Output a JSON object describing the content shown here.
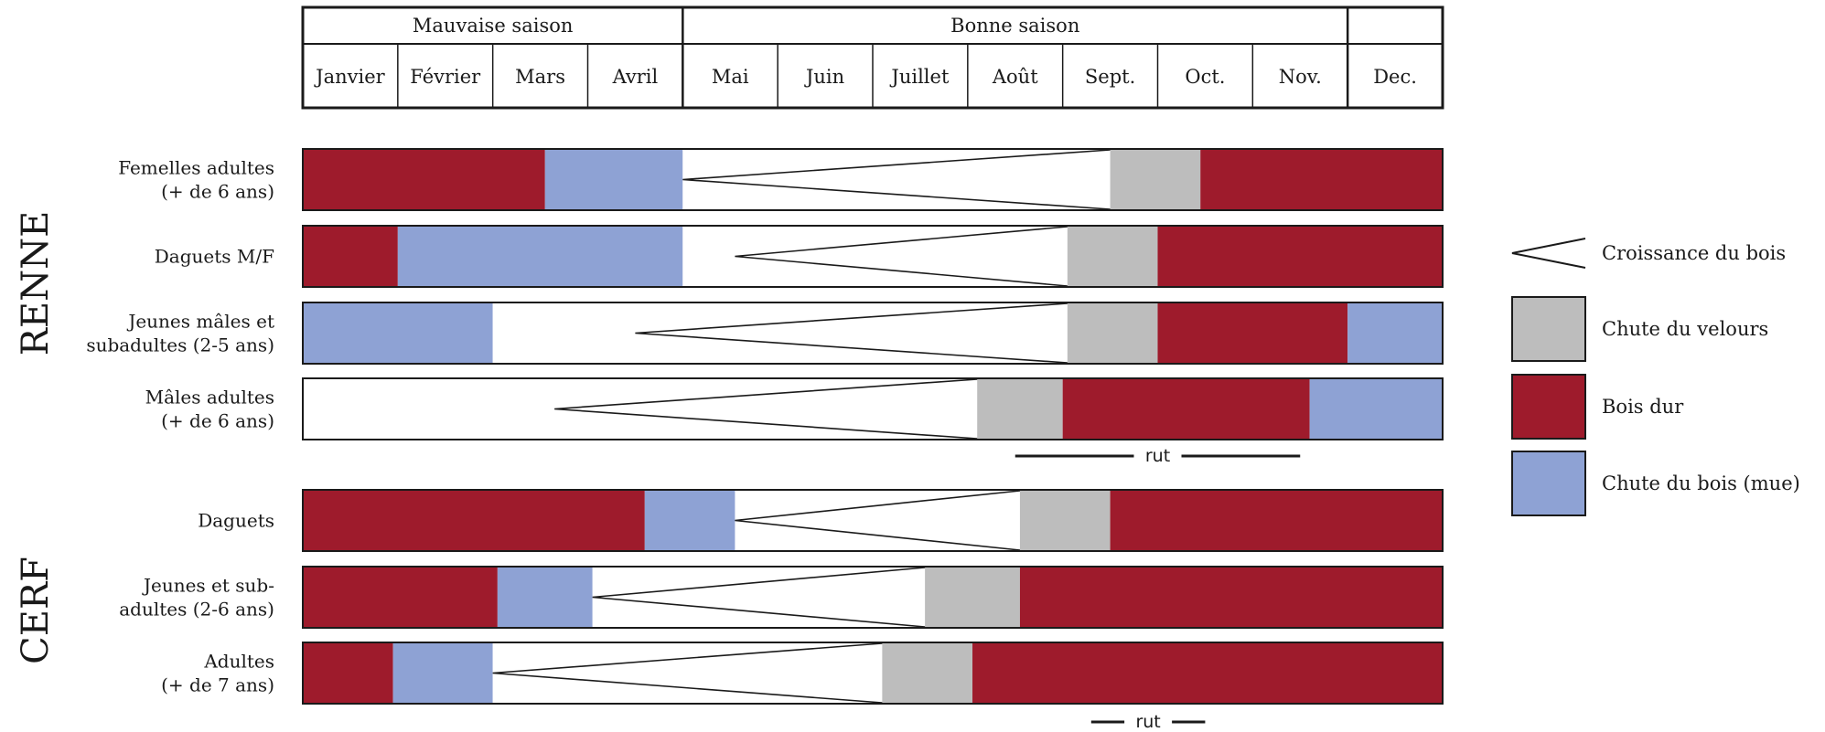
{
  "header": {
    "seasons": [
      {
        "label": "Mauvaise saison",
        "from": 0,
        "to": 4
      },
      {
        "label": "Bonne saison",
        "from": 4,
        "to": 11
      },
      {
        "label": "",
        "from": 11,
        "to": 12
      }
    ],
    "months": [
      "Janvier",
      "Février",
      "Mars",
      "Avril",
      "Mai",
      "Juin",
      "Juillet",
      "Août",
      "Sept.",
      "Oct.",
      "Nov.",
      "Dec."
    ]
  },
  "colors": {
    "bois_dur": "#9e1b2c",
    "mue": "#8ea2d4",
    "velours": "#bdbdbd",
    "croissance": "#ffffff",
    "stroke": "#1a1a1a"
  },
  "species": [
    {
      "name": "RENNE",
      "rows": [
        {
          "label": [
            "Femelles adultes",
            "(+ de 6 ans)"
          ],
          "segments": [
            [
              0,
              2.55,
              "bois_dur"
            ],
            [
              2.55,
              4.0,
              "mue"
            ],
            [
              4.0,
              8.5,
              "croissance"
            ],
            [
              8.5,
              9.45,
              "velours"
            ],
            [
              9.45,
              12,
              "bois_dur"
            ]
          ],
          "growth": [
            4.0,
            8.5
          ]
        },
        {
          "label": [
            "Daguets M/F"
          ],
          "segments": [
            [
              0,
              1.0,
              "bois_dur"
            ],
            [
              1.0,
              4.0,
              "mue"
            ],
            [
              4.0,
              8.05,
              "croissance"
            ],
            [
              8.05,
              9.0,
              "velours"
            ],
            [
              9.0,
              12,
              "bois_dur"
            ]
          ],
          "growth": [
            4.55,
            8.05
          ]
        },
        {
          "label": [
            "Jeunes  mâles et",
            "subadultes (2-5 ans)"
          ],
          "segments": [
            [
              0,
              2.0,
              "mue"
            ],
            [
              2.0,
              8.05,
              "croissance"
            ],
            [
              8.05,
              9.0,
              "velours"
            ],
            [
              9.0,
              11.0,
              "bois_dur"
            ],
            [
              11.0,
              12,
              "mue"
            ]
          ],
          "growth": [
            3.5,
            8.05
          ]
        },
        {
          "label": [
            "Mâles adultes",
            "(+ de 6 ans)"
          ],
          "segments": [
            [
              0,
              7.1,
              "croissance"
            ],
            [
              7.1,
              8.0,
              "velours"
            ],
            [
              8.0,
              10.6,
              "bois_dur"
            ],
            [
              10.6,
              12,
              "mue"
            ]
          ],
          "growth": [
            2.65,
            7.1
          ]
        }
      ],
      "rut": {
        "label": "rut",
        "from": 7.5,
        "to": 10.5
      }
    },
    {
      "name": "CERF",
      "rows": [
        {
          "label": [
            "Daguets"
          ],
          "segments": [
            [
              0,
              3.6,
              "bois_dur"
            ],
            [
              3.6,
              4.55,
              "mue"
            ],
            [
              4.55,
              7.55,
              "croissance"
            ],
            [
              7.55,
              8.5,
              "velours"
            ],
            [
              8.5,
              12,
              "bois_dur"
            ]
          ],
          "growth": [
            4.55,
            7.55
          ]
        },
        {
          "label": [
            "Jeunes  et sub-",
            "adultes (2-6 ans)"
          ],
          "segments": [
            [
              0,
              2.05,
              "bois_dur"
            ],
            [
              2.05,
              3.05,
              "mue"
            ],
            [
              3.05,
              6.55,
              "croissance"
            ],
            [
              6.55,
              7.55,
              "velours"
            ],
            [
              7.55,
              12,
              "bois_dur"
            ]
          ],
          "growth": [
            3.05,
            6.55
          ]
        },
        {
          "label": [
            "Adultes",
            "(+ de 7 ans)"
          ],
          "segments": [
            [
              0,
              0.95,
              "bois_dur"
            ],
            [
              0.95,
              2.0,
              "mue"
            ],
            [
              2.0,
              6.1,
              "croissance"
            ],
            [
              6.1,
              7.05,
              "velours"
            ],
            [
              7.05,
              12,
              "bois_dur"
            ]
          ],
          "growth": [
            2.0,
            6.1
          ]
        }
      ],
      "rut": {
        "label": "rut",
        "from": 8.3,
        "to": 9.5
      }
    }
  ],
  "legend": [
    {
      "type": "growth",
      "label": "Croissance du bois"
    },
    {
      "type": "velours",
      "label": "Chute du velours"
    },
    {
      "type": "bois_dur",
      "label": "Bois dur"
    },
    {
      "type": "mue",
      "label": "Chute du bois (mue)"
    }
  ]
}
